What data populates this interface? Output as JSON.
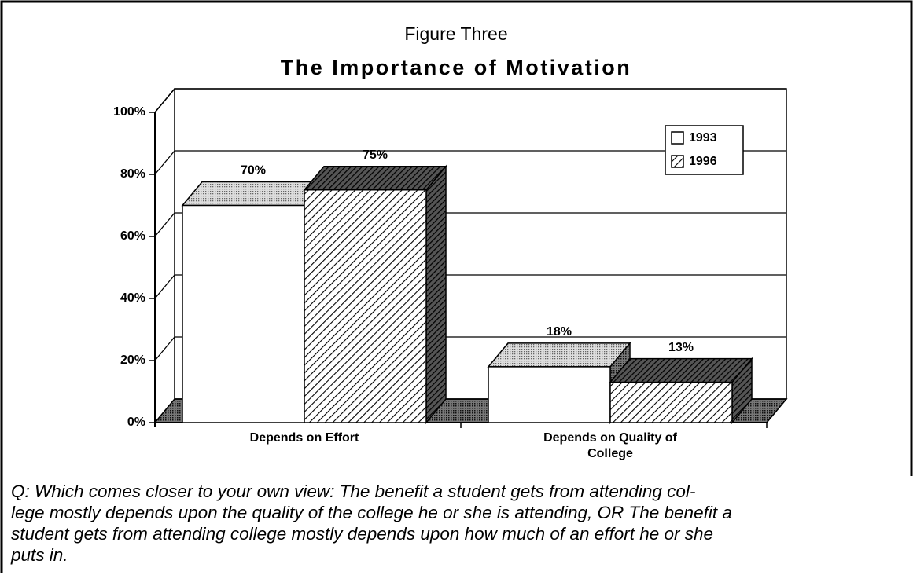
{
  "chart_data": {
    "type": "bar3d",
    "subtitle": "Figure Three",
    "title": "The Importance of Motivation",
    "categories": [
      "Depends on Effort",
      "Depends on Quality of College"
    ],
    "series": [
      {
        "name": "1993",
        "color": "#ffffff",
        "values": [
          70,
          18
        ],
        "value_labels": [
          "70%",
          "18%"
        ]
      },
      {
        "name": "1996",
        "color": "#000000",
        "values": [
          75,
          13
        ],
        "value_labels": [
          "75%",
          "13%"
        ]
      }
    ],
    "ylim": [
      0,
      100
    ],
    "yticks": [
      {
        "value": 0,
        "label": "0%"
      },
      {
        "value": 20,
        "label": "20%"
      },
      {
        "value": 40,
        "label": "40%"
      },
      {
        "value": 60,
        "label": "60%"
      },
      {
        "value": 80,
        "label": "80%"
      },
      {
        "value": 100,
        "label": "100%"
      }
    ],
    "grid": true,
    "legend": "upper right",
    "caption_lines": [
      "Q: Which comes closer to your own view: The benefit a student gets from attending col-",
      "lege mostly depends upon the quality of the college he or she is attending, OR The benefit a",
      "student gets from attending college mostly depends upon how much of an effort he or she",
      "puts in."
    ]
  }
}
